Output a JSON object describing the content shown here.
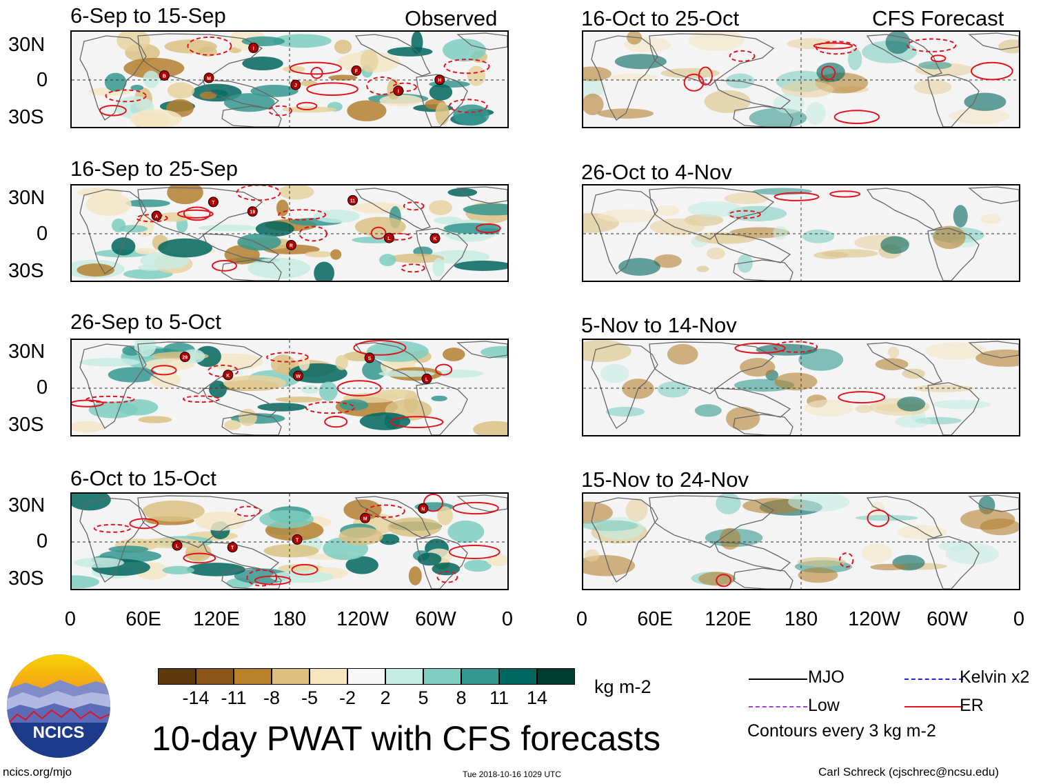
{
  "header": {
    "observed_label": "Observed",
    "forecast_label": "CFS Forecast"
  },
  "axes": {
    "lat_labels": [
      "30N",
      "0",
      "30S"
    ],
    "lon_labels": [
      "0",
      "60E",
      "120E",
      "180",
      "120W",
      "60W",
      "0"
    ]
  },
  "panels": [
    {
      "id": "obs1",
      "title": "6-Sep to 15-Sep",
      "storms": [
        "B",
        "M",
        "I",
        "J",
        "F",
        "I",
        "H"
      ]
    },
    {
      "id": "obs2",
      "title": "16-Sep to 25-Sep",
      "storms": [
        "A",
        "T",
        "19",
        "R",
        "11",
        "L",
        "K"
      ]
    },
    {
      "id": "obs3",
      "title": "26-Sep to 5-Oct",
      "storms": [
        "29",
        "K",
        "W",
        "S",
        "L"
      ]
    },
    {
      "id": "obs4",
      "title": "6-Oct to 15-Oct",
      "storms": [
        "L",
        "T",
        "T",
        "M",
        "N"
      ]
    },
    {
      "id": "fc1",
      "title": "16-Oct to 25-Oct",
      "storms": []
    },
    {
      "id": "fc2",
      "title": "26-Oct to 4-Nov",
      "storms": []
    },
    {
      "id": "fc3",
      "title": "5-Nov to 14-Nov",
      "storms": []
    },
    {
      "id": "fc4",
      "title": "15-Nov to 24-Nov",
      "storms": []
    }
  ],
  "colorbar": {
    "values": [
      "-14",
      "-11",
      "-8",
      "-5",
      "-2",
      "2",
      "5",
      "8",
      "11",
      "14"
    ],
    "colors": [
      "#5c3a0e",
      "#8a5617",
      "#b7822b",
      "#dcbf7c",
      "#f6e7c0",
      "#f7f7f7",
      "#c6ebe2",
      "#80cdc1",
      "#35978f",
      "#01665e",
      "#003c30"
    ],
    "units": "kg m-2"
  },
  "title": "10-day PWAT with CFS forecasts",
  "legend": {
    "items": [
      {
        "label": "MJO",
        "color": "#000000"
      },
      {
        "label": "Kelvin x2",
        "color": "#1e22d0"
      },
      {
        "label": "Low",
        "color": "#a040e0"
      },
      {
        "label": "ER",
        "color": "#e0141e"
      }
    ],
    "note": "Contours every 3 kg m-2"
  },
  "logo": {
    "text": "NCICS"
  },
  "footer": {
    "url": "ncics.org/mjo",
    "timestamp": "Tue 2018-10-16 1029 UTC",
    "author": "Carl Schreck (cjschrec@ncsu.edu)"
  }
}
